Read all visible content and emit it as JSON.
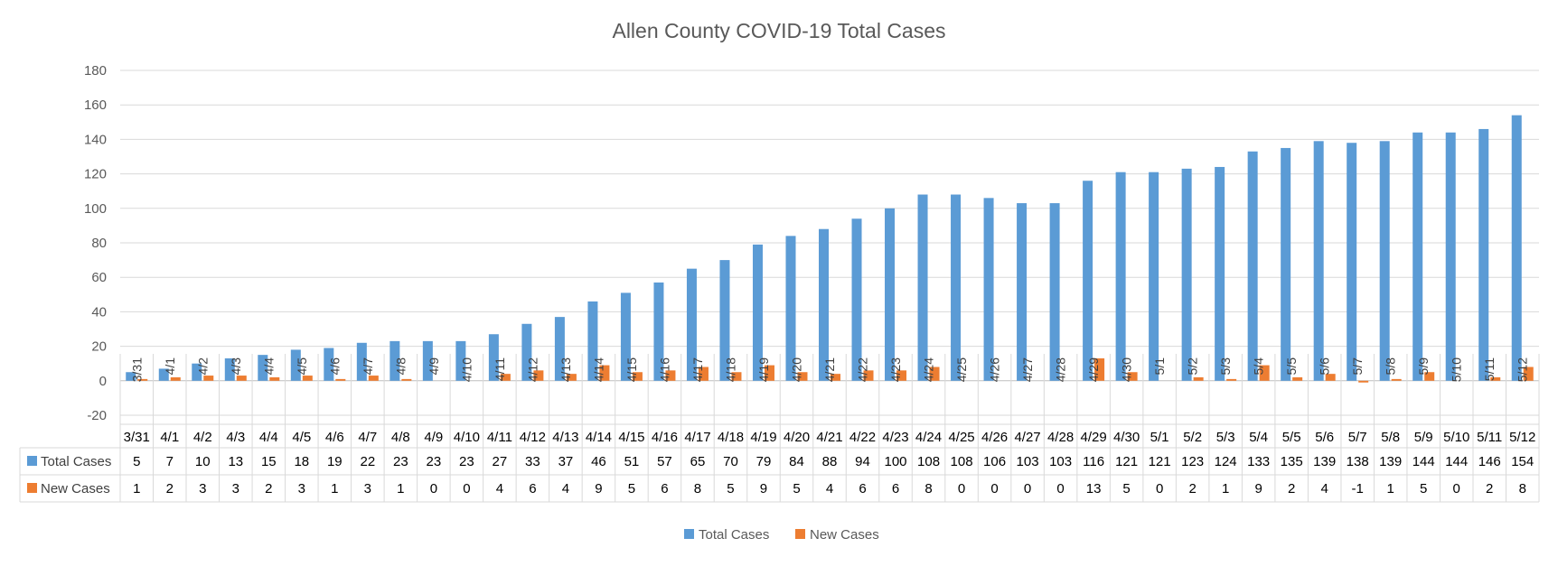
{
  "chart_data": {
    "type": "bar",
    "title": "Allen County COVID-19 Total Cases",
    "xlabel": "",
    "ylabel": "",
    "ylim": [
      -20,
      180
    ],
    "yticks": [
      -20,
      0,
      20,
      40,
      60,
      80,
      100,
      120,
      140,
      160,
      180
    ],
    "grid": true,
    "legend_position": "bottom",
    "data_table": true,
    "categories": [
      "3/31",
      "4/1",
      "4/2",
      "4/3",
      "4/4",
      "4/5",
      "4/6",
      "4/7",
      "4/8",
      "4/9",
      "4/10",
      "4/11",
      "4/12",
      "4/13",
      "4/14",
      "4/15",
      "4/16",
      "4/17",
      "4/18",
      "4/19",
      "4/20",
      "4/21",
      "4/22",
      "4/23",
      "4/24",
      "4/25",
      "4/26",
      "4/27",
      "4/28",
      "4/29",
      "4/30",
      "5/1",
      "5/2",
      "5/3",
      "5/4",
      "5/5",
      "5/6",
      "5/7",
      "5/8",
      "5/9",
      "5/10",
      "5/11",
      "5/12"
    ],
    "series": [
      {
        "name": "Total Cases",
        "color": "#5B9BD5",
        "values": [
          5,
          7,
          10,
          13,
          15,
          18,
          19,
          22,
          23,
          23,
          23,
          27,
          33,
          37,
          46,
          51,
          57,
          65,
          70,
          79,
          84,
          88,
          94,
          100,
          108,
          108,
          106,
          103,
          103,
          116,
          121,
          121,
          123,
          124,
          133,
          135,
          139,
          138,
          139,
          144,
          144,
          146,
          154
        ]
      },
      {
        "name": "New Cases",
        "color": "#ED7D31",
        "values": [
          1,
          2,
          3,
          3,
          2,
          3,
          1,
          3,
          1,
          0,
          0,
          4,
          6,
          4,
          9,
          5,
          6,
          8,
          5,
          9,
          5,
          4,
          6,
          6,
          8,
          0,
          0,
          0,
          0,
          13,
          5,
          0,
          2,
          1,
          9,
          2,
          4,
          -1,
          1,
          5,
          0,
          2,
          8
        ]
      }
    ]
  }
}
